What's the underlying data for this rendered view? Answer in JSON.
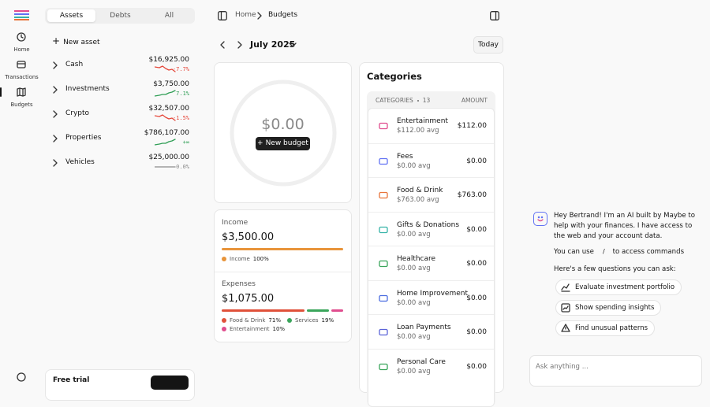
{
  "nav": {
    "items": [
      {
        "label": "Home"
      },
      {
        "label": "Transactions"
      },
      {
        "label": "Budgets"
      }
    ],
    "active": 2
  },
  "sidebar": {
    "tabs": [
      "Assets",
      "Debts",
      "All"
    ],
    "active_tab": 0,
    "new_asset": "New asset",
    "accounts": [
      {
        "name": "Cash",
        "balance": "$16,925.00",
        "change": "-7.7%",
        "trend": "down",
        "color": "#e5483b"
      },
      {
        "name": "Investments",
        "balance": "$3,750.00",
        "change": "7.1%",
        "trend": "up",
        "color": "#2f9e55"
      },
      {
        "name": "Crypto",
        "balance": "$32,507.00",
        "change": "-1.5%",
        "trend": "down",
        "color": "#e5483b"
      },
      {
        "name": "Properties",
        "balance": "$786,107.00",
        "change": "+∞",
        "trend": "up",
        "color": "#2f9e55"
      },
      {
        "name": "Vehicles",
        "balance": "$25,000.00",
        "change": "0.0%",
        "trend": "flat",
        "color": "#8a8a8a"
      }
    ],
    "trial": "Free trial"
  },
  "header": {
    "breadcrumb": [
      "Home",
      "Budgets"
    ]
  },
  "period": {
    "month": "July 2025",
    "today": "Today"
  },
  "budget": {
    "amount": "$0.00",
    "button": "New budget"
  },
  "income": {
    "title": "Income",
    "amount": "$3,500.00",
    "segments": [
      {
        "name": "Income",
        "color": "#e8943a",
        "share": {
          "value": 100,
          "label": "100%"
        }
      }
    ]
  },
  "expenses": {
    "title": "Expenses",
    "amount": "$1,075.00",
    "segments": [
      {
        "name": "Food & Drink",
        "color": "#e0513a",
        "share": {
          "value": 71,
          "label": "71%"
        }
      },
      {
        "name": "Services",
        "color": "#3aa55b",
        "share": {
          "value": 19,
          "label": "19%"
        }
      },
      {
        "name": "Entertainment",
        "color": "#e04d8e",
        "share": {
          "value": 10,
          "label": "10%"
        }
      }
    ]
  },
  "categories": {
    "title": "Categories",
    "column_label": "CATEGORIES",
    "count": 13,
    "amount_label": "AMOUNT",
    "rows": [
      {
        "name": "Entertainment",
        "avg": "$112.00 avg",
        "amount": "$112.00",
        "color": "#e04d8e"
      },
      {
        "name": "Fees",
        "avg": "$0.00 avg",
        "amount": "$0.00",
        "color": "#6172f3"
      },
      {
        "name": "Food & Drink",
        "avg": "$763.00 avg",
        "amount": "$763.00",
        "color": "#e8743a"
      },
      {
        "name": "Gifts & Donations",
        "avg": "$0.00 avg",
        "amount": "$0.00",
        "color": "#36b3a8"
      },
      {
        "name": "Healthcare",
        "avg": "$0.00 avg",
        "amount": "$0.00",
        "color": "#3aa55b"
      },
      {
        "name": "Home Improvement",
        "avg": "$0.00 avg",
        "amount": "$0.00",
        "color": "#4b6de0"
      },
      {
        "name": "Loan Payments",
        "avg": "$0.00 avg",
        "amount": "$0.00",
        "color": "#5b63d8"
      },
      {
        "name": "Personal Care",
        "avg": "$0.00 avg",
        "amount": "$0.00",
        "color": "#3aa55b"
      }
    ]
  },
  "chat": {
    "greeting": "Hey Bertrand! I'm an AI built by Maybe to help with your finances. I have access to the web and your account data.",
    "commands_before": "You can use",
    "command_key": "/",
    "commands_after": "to access commands",
    "questions_intro": "Here's a few questions you can ask:",
    "suggestions": [
      "Evaluate investment portfolio",
      "Show spending insights",
      "Find unusual patterns"
    ],
    "placeholder": "Ask anything ..."
  }
}
